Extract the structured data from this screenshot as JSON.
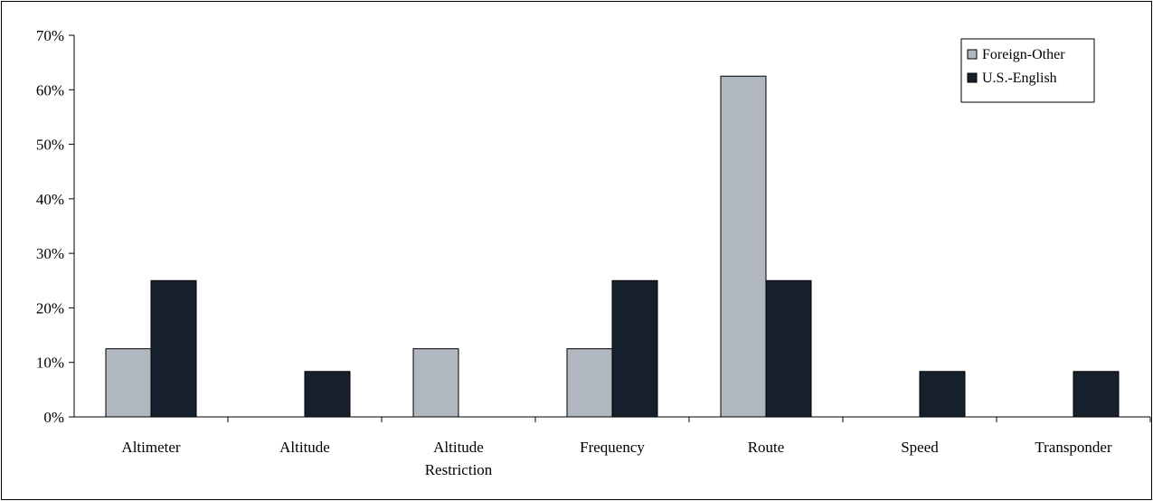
{
  "chart_data": {
    "type": "bar",
    "categories": [
      [
        "Altimeter"
      ],
      [
        "Altitude"
      ],
      [
        "Altitude",
        "Restriction"
      ],
      [
        "Frequency"
      ],
      [
        "Route"
      ],
      [
        "Speed"
      ],
      [
        "Transponder"
      ]
    ],
    "series": [
      {
        "name": "Foreign-Other",
        "color": "#b1b7bf",
        "values": [
          12.5,
          0,
          12.5,
          12.5,
          62.5,
          0,
          0
        ]
      },
      {
        "name": "U.S.-English",
        "color": "#17202d",
        "values": [
          25,
          8.33,
          0,
          25,
          25,
          8.33,
          8.33
        ]
      }
    ],
    "yticks": [
      "0%",
      "10%",
      "20%",
      "30%",
      "40%",
      "50%",
      "60%",
      "70%"
    ],
    "ylim": [
      0,
      70
    ],
    "grid": false,
    "legend_position": "top-right"
  }
}
